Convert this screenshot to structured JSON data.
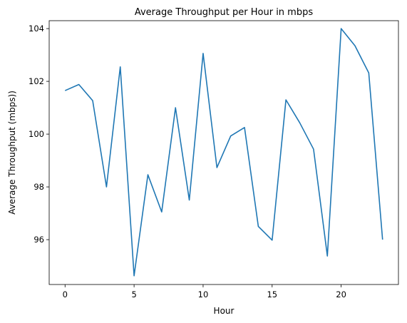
{
  "chart_data": {
    "type": "line",
    "title": "Average Throughput per Hour in mbps",
    "xlabel": "Hour",
    "ylabel": "Average Throughput (mbps))",
    "xlim": [
      -1.15,
      24.15
    ],
    "ylim": [
      94.3,
      104.3
    ],
    "xticks": [
      0,
      5,
      10,
      15,
      20
    ],
    "yticks": [
      96,
      98,
      100,
      102,
      104
    ],
    "grid": false,
    "series": [
      {
        "name": "Average Throughput",
        "color": "#1f77b4",
        "x": [
          0,
          1,
          2,
          3,
          4,
          5,
          6,
          7,
          8,
          9,
          10,
          11,
          12,
          13,
          14,
          15,
          16,
          17,
          18,
          19,
          20,
          21,
          22,
          23
        ],
        "y": [
          101.65,
          101.88,
          101.27,
          98.0,
          102.55,
          94.63,
          98.46,
          97.05,
          101.0,
          97.5,
          103.06,
          98.73,
          99.93,
          100.25,
          96.5,
          95.98,
          101.3,
          100.43,
          99.43,
          95.38,
          104.0,
          103.35,
          102.32,
          96.0
        ]
      }
    ]
  }
}
